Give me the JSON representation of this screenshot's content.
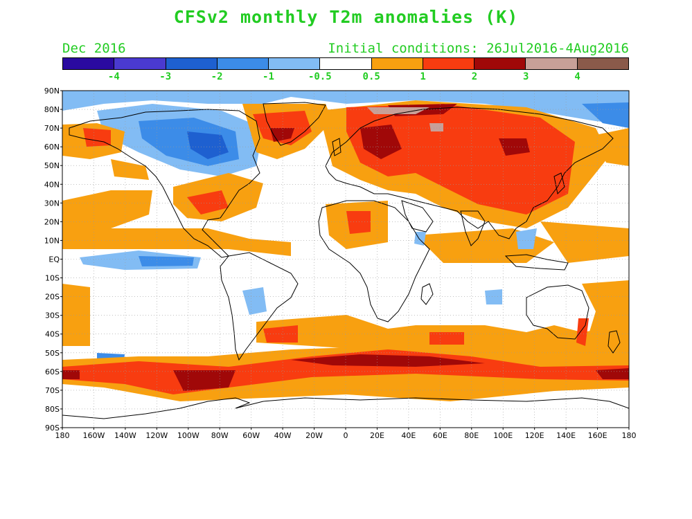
{
  "title": "CFSv2 monthly T2m anomalies (K)",
  "valid_month": "Dec 2016",
  "initial_conditions": "Initial conditions: 26Jul2016-4Aug2016",
  "legend": {
    "colors": [
      "#2a0aa0",
      "#4a3ad0",
      "#1e60d0",
      "#3c8ce8",
      "#82bcf4",
      "#ffffff",
      "#f8a010",
      "#f83c10",
      "#a00808",
      "#c8a098",
      "#8a5a4a"
    ],
    "labels": [
      "-4",
      "-3",
      "-2",
      "-1",
      "-0.5",
      "0.5",
      "1",
      "2",
      "3",
      "4"
    ]
  },
  "axes": {
    "lat_labels": [
      "90N",
      "80N",
      "70N",
      "60N",
      "50N",
      "40N",
      "30N",
      "20N",
      "10N",
      "EQ",
      "10S",
      "20S",
      "30S",
      "40S",
      "50S",
      "60S",
      "70S",
      "80S",
      "90S"
    ],
    "lon_labels": [
      "180",
      "160W",
      "140W",
      "120W",
      "100W",
      "80W",
      "60W",
      "40W",
      "20W",
      "0",
      "20E",
      "40E",
      "60E",
      "80E",
      "100E",
      "120E",
      "140E",
      "160E",
      "180"
    ]
  },
  "anomaly_regions": [
    {
      "label": "Canadian Arctic cold anomaly",
      "lon": -95,
      "lat": 62,
      "value": -2
    },
    {
      "label": "North Pacific warm anomaly",
      "lon": -150,
      "lat": 30,
      "value": 1
    },
    {
      "label": "Equatorial Pacific cold anomaly",
      "lon": -110,
      "lat": 0,
      "value": -1
    },
    {
      "label": "Siberian warm anomaly",
      "lon": 90,
      "lat": 55,
      "value": 2
    },
    {
      "label": "Southern Ocean warm belt",
      "lon": -80,
      "lat": -58,
      "value": 2
    }
  ]
}
